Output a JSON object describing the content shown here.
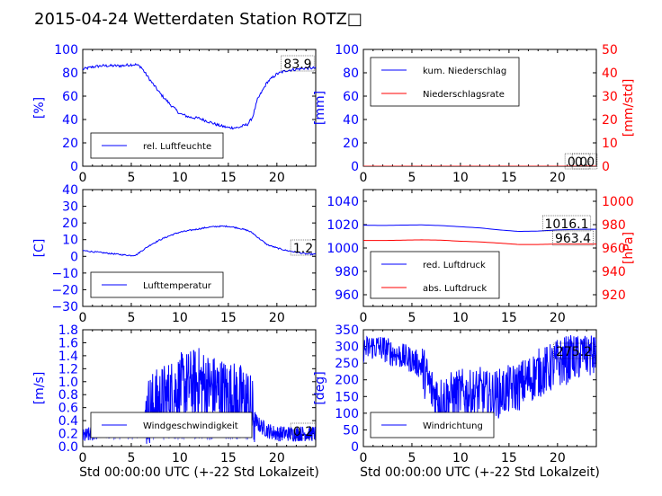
{
  "title": "2015-04-24 Wetterdaten Station ROTZ□",
  "colors": {
    "blue": "#0000ff",
    "red": "#ff0000",
    "light_blue": "#8080ff",
    "axis": "#000000"
  },
  "chart_data": [
    {
      "id": "humidity",
      "type": "line",
      "ylabel_left": "[%]",
      "ylim_left": [
        0,
        100
      ],
      "yticks_left": [
        "0",
        "20",
        "40",
        "60",
        "80",
        "100"
      ],
      "xlim": [
        0,
        24
      ],
      "xticks": [
        "0",
        "5",
        "10",
        "15",
        "20"
      ],
      "legend": [
        "rel. Luftfeuchte"
      ],
      "legend_loc": "lower-center",
      "annotations": [
        "83.9"
      ],
      "series": [
        {
          "name": "rel. Luftfeuchte",
          "color": "#0000ff",
          "x": [
            0,
            1,
            2,
            3,
            4,
            5,
            5.5,
            6,
            7,
            8,
            9,
            10,
            11,
            12,
            13,
            14,
            15,
            16,
            17,
            17.5,
            18,
            19,
            20,
            21,
            22,
            23,
            24
          ],
          "y": [
            83,
            85,
            86,
            86,
            86,
            87,
            87,
            85,
            73,
            62,
            53,
            45,
            42,
            41,
            38,
            35,
            33,
            33,
            36,
            42,
            57,
            72,
            79,
            82,
            83,
            84,
            84
          ]
        }
      ]
    },
    {
      "id": "precip",
      "type": "line",
      "ylabel_left": "[mm]",
      "ylim_left": [
        0,
        100
      ],
      "yticks_left": [
        "0",
        "20",
        "40",
        "60",
        "80",
        "100"
      ],
      "ylabel_right": "[mm/std]",
      "ylim_right": [
        0,
        50
      ],
      "yticks_right": [
        "0",
        "10",
        "20",
        "30",
        "40",
        "50"
      ],
      "xlim": [
        0,
        24
      ],
      "xticks": [
        "0",
        "5",
        "10",
        "15",
        "20"
      ],
      "legend": [
        "kum. Niederschlag",
        "Niederschlagsrate"
      ],
      "legend_loc": "upper-left",
      "annotations": [
        "0.0",
        "0.0"
      ],
      "series": [
        {
          "name": "kum. Niederschlag",
          "color": "#0000ff",
          "x": [
            0,
            24
          ],
          "y": [
            0,
            0
          ]
        },
        {
          "name": "Niederschlagsrate",
          "color": "#ff0000",
          "x": [
            0,
            24
          ],
          "y": [
            0,
            0
          ]
        }
      ]
    },
    {
      "id": "temperature",
      "type": "line",
      "ylabel_left": "[C]",
      "ylim_left": [
        -30,
        40
      ],
      "yticks_left": [
        "−30",
        "−20",
        "−10",
        "0",
        "10",
        "20",
        "30",
        "40"
      ],
      "xlim": [
        0,
        24
      ],
      "xticks": [
        "0",
        "5",
        "10",
        "15",
        "20"
      ],
      "legend": [
        "Lufttemperatur"
      ],
      "legend_loc": "lower-center",
      "annotations": [
        "1.2"
      ],
      "series": [
        {
          "name": "Lufttemperatur",
          "color": "#0000ff",
          "x": [
            0,
            1,
            2,
            3,
            4,
            5,
            5.5,
            6,
            7,
            8,
            9,
            10,
            11,
            12,
            13,
            14,
            15,
            16,
            17,
            17.5,
            18,
            19,
            20,
            21,
            22,
            23,
            24
          ],
          "y": [
            3.5,
            2.8,
            2.2,
            1.6,
            1.0,
            0.5,
            0.8,
            3,
            7,
            10,
            12.5,
            14.5,
            15.5,
            16.5,
            17.5,
            18,
            18,
            17,
            15.5,
            14,
            11.5,
            7,
            5,
            3.5,
            2.5,
            1.5,
            1.2
          ]
        }
      ]
    },
    {
      "id": "pressure",
      "type": "line",
      "ylabel_left": "",
      "ylim_left": [
        950,
        1050
      ],
      "yticks_left": [
        "960",
        "980",
        "1000",
        "1020",
        "1040"
      ],
      "ylabel_right": "[hPa]",
      "ylim_right": [
        910,
        1010
      ],
      "yticks_right": [
        "920",
        "940",
        "960",
        "980",
        "1000"
      ],
      "xlim": [
        0,
        24
      ],
      "xticks": [
        "0",
        "5",
        "10",
        "15",
        "20"
      ],
      "legend": [
        "red. Luftdruck",
        "abs. Luftdruck"
      ],
      "legend_loc": "lower-left",
      "annotations": [
        "1016.1",
        "963.4"
      ],
      "series": [
        {
          "name": "red. Luftdruck",
          "color": "#0000ff",
          "x": [
            0,
            2,
            4,
            6,
            8,
            10,
            12,
            14,
            16,
            18,
            20,
            22,
            24
          ],
          "y": [
            1019.5,
            1019.3,
            1019.6,
            1019.8,
            1019.2,
            1018.2,
            1017.2,
            1015.5,
            1014.2,
            1014.5,
            1015.5,
            1016,
            1016.1
          ]
        },
        {
          "name": "abs. Luftdruck",
          "color": "#ff0000",
          "x": [
            0,
            2,
            4,
            6,
            8,
            10,
            12,
            14,
            16,
            18,
            20,
            22,
            24
          ],
          "y": [
            966.5,
            966.4,
            966.7,
            967,
            966.7,
            965.8,
            965.2,
            964.2,
            963,
            963,
            963.4,
            963.4,
            963.4
          ]
        }
      ]
    },
    {
      "id": "wind_speed",
      "type": "line",
      "ylabel_left": "[m/s]",
      "ylim_left": [
        0,
        1.8
      ],
      "yticks_left": [
        "0.0",
        "0.2",
        "0.4",
        "0.6",
        "0.8",
        "1.0",
        "1.2",
        "1.4",
        "1.6",
        "1.8"
      ],
      "xlim": [
        0,
        24
      ],
      "xticks": [
        "0",
        "5",
        "10",
        "15",
        "20"
      ],
      "xlabel": "Std 00:00:00 UTC (+-22 Std Lokalzeit)",
      "legend": [
        "Windgeschwindigkeit"
      ],
      "legend_loc": "lower-center",
      "annotations": [
        "0.2"
      ],
      "series": [
        {
          "name": "Windgeschwindigkeit",
          "color": "#0000ff",
          "x": [
            0,
            1,
            2,
            3,
            4,
            5,
            6,
            6.5,
            7,
            8,
            9,
            10,
            11,
            12,
            13,
            14,
            15,
            16,
            17,
            17.5,
            18,
            19,
            20,
            21,
            22,
            23,
            24
          ],
          "y": [
            0.15,
            0.2,
            0.25,
            0.25,
            0.3,
            0.3,
            0.3,
            0.5,
            0.6,
            0.7,
            0.8,
            0.9,
            0.95,
            1.0,
            0.9,
            0.85,
            0.8,
            0.75,
            0.7,
            0.5,
            0.35,
            0.25,
            0.2,
            0.2,
            0.2,
            0.2,
            0.2
          ]
        }
      ]
    },
    {
      "id": "wind_direction",
      "type": "line",
      "ylabel_left": "[deg]",
      "ylim_left": [
        0,
        350
      ],
      "yticks_left": [
        "0",
        "50",
        "100",
        "150",
        "200",
        "250",
        "300",
        "350"
      ],
      "xlim": [
        0,
        24
      ],
      "xticks": [
        "0",
        "5",
        "10",
        "15",
        "20"
      ],
      "xlabel": "Std 00:00:00 UTC (+-22 Std Lokalzeit)",
      "legend": [
        "Windrichtung"
      ],
      "legend_loc": "lower-left",
      "annotations": [
        "275.2"
      ],
      "series": [
        {
          "name": "Windrichtung",
          "color": "#0000ff",
          "x": [
            0,
            1,
            2,
            3,
            4,
            5,
            6,
            7,
            8,
            9,
            10,
            11,
            12,
            13,
            14,
            15,
            16,
            17,
            18,
            19,
            20,
            21,
            22,
            23,
            24
          ],
          "y": [
            290,
            300,
            295,
            280,
            270,
            260,
            240,
            170,
            140,
            150,
            160,
            155,
            165,
            150,
            160,
            170,
            180,
            200,
            220,
            230,
            250,
            260,
            270,
            280,
            275
          ]
        }
      ]
    }
  ]
}
